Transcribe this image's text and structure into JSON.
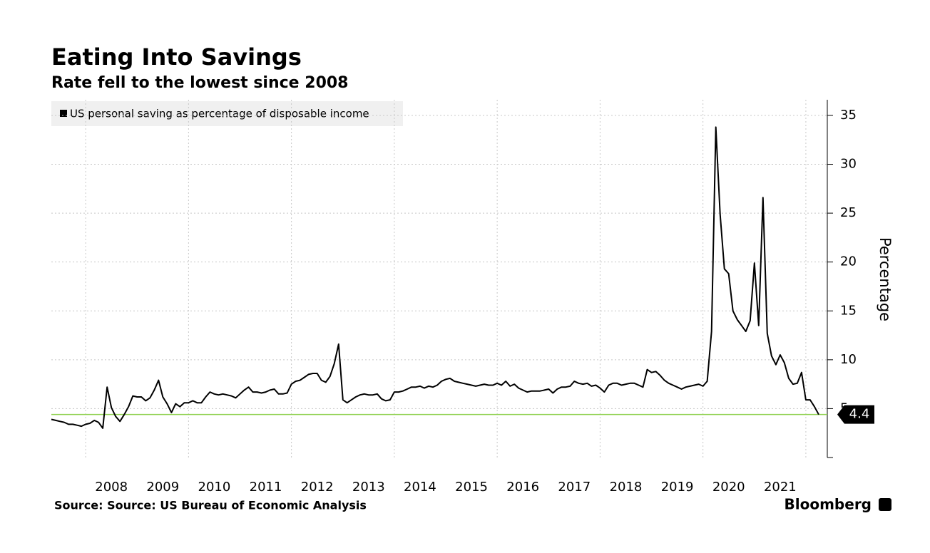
{
  "chart_data": {
    "type": "line",
    "title": "Eating Into Savings",
    "subtitle": "Rate fell to the lowest since 2008",
    "source": "Source: Source: US Bureau of Economic Analysis",
    "brand": "Bloomberg",
    "ylabel": "Percentage",
    "xlim": [
      2007.333,
      2022.417
    ],
    "ylim": [
      0,
      36.6
    ],
    "yticks": [
      5,
      10,
      15,
      20,
      25,
      30,
      35
    ],
    "xticks": [
      {
        "value": 2008.5,
        "label": "2008"
      },
      {
        "value": 2009.5,
        "label": "2009"
      },
      {
        "value": 2010.5,
        "label": "2010"
      },
      {
        "value": 2011.5,
        "label": "2011"
      },
      {
        "value": 2012.5,
        "label": "2012"
      },
      {
        "value": 2013.5,
        "label": "2013"
      },
      {
        "value": 2014.5,
        "label": "2014"
      },
      {
        "value": 2015.5,
        "label": "2015"
      },
      {
        "value": 2016.5,
        "label": "2016"
      },
      {
        "value": 2017.5,
        "label": "2017"
      },
      {
        "value": 2018.5,
        "label": "2018"
      },
      {
        "value": 2019.5,
        "label": "2019"
      },
      {
        "value": 2020.5,
        "label": "2020"
      },
      {
        "value": 2021.5,
        "label": "2021"
      }
    ],
    "xgrid": [
      2008,
      2010,
      2012,
      2014,
      2016,
      2018,
      2020,
      2022
    ],
    "grid": true,
    "reference_color": "#8fd14f",
    "x": [
      2007.333,
      2007.417,
      2007.5,
      2007.583,
      2007.667,
      2007.75,
      2007.833,
      2007.917,
      2008,
      2008.083,
      2008.167,
      2008.25,
      2008.333,
      2008.417,
      2008.5,
      2008.583,
      2008.667,
      2008.75,
      2008.833,
      2008.917,
      2009,
      2009.083,
      2009.167,
      2009.25,
      2009.333,
      2009.417,
      2009.5,
      2009.583,
      2009.667,
      2009.75,
      2009.833,
      2009.917,
      2010,
      2010.083,
      2010.167,
      2010.25,
      2010.333,
      2010.417,
      2010.5,
      2010.583,
      2010.667,
      2010.75,
      2010.833,
      2010.917,
      2011,
      2011.083,
      2011.167,
      2011.25,
      2011.333,
      2011.417,
      2011.5,
      2011.583,
      2011.667,
      2011.75,
      2011.833,
      2011.917,
      2012,
      2012.083,
      2012.167,
      2012.25,
      2012.333,
      2012.417,
      2012.5,
      2012.583,
      2012.667,
      2012.75,
      2012.833,
      2012.917,
      2013,
      2013.083,
      2013.167,
      2013.25,
      2013.333,
      2013.417,
      2013.5,
      2013.583,
      2013.667,
      2013.75,
      2013.833,
      2013.917,
      2014,
      2014.083,
      2014.167,
      2014.25,
      2014.333,
      2014.417,
      2014.5,
      2014.583,
      2014.667,
      2014.75,
      2014.833,
      2014.917,
      2015,
      2015.083,
      2015.167,
      2015.25,
      2015.333,
      2015.417,
      2015.5,
      2015.583,
      2015.667,
      2015.75,
      2015.833,
      2015.917,
      2016,
      2016.083,
      2016.167,
      2016.25,
      2016.333,
      2016.417,
      2016.5,
      2016.583,
      2016.667,
      2016.75,
      2016.833,
      2016.917,
      2017,
      2017.083,
      2017.167,
      2017.25,
      2017.333,
      2017.417,
      2017.5,
      2017.583,
      2017.667,
      2017.75,
      2017.833,
      2017.917,
      2018,
      2018.083,
      2018.167,
      2018.25,
      2018.333,
      2018.417,
      2018.5,
      2018.583,
      2018.667,
      2018.75,
      2018.833,
      2018.917,
      2019,
      2019.083,
      2019.167,
      2019.25,
      2019.333,
      2019.417,
      2019.5,
      2019.583,
      2019.667,
      2019.75,
      2019.833,
      2019.917,
      2020,
      2020.083,
      2020.167,
      2020.25,
      2020.333,
      2020.417,
      2020.5,
      2020.583,
      2020.667,
      2020.75,
      2020.833,
      2020.917,
      2021,
      2021.083,
      2021.167,
      2021.25,
      2021.333,
      2021.417,
      2021.5,
      2021.583,
      2021.667,
      2021.75,
      2021.833,
      2021.917,
      2022,
      2022.083,
      2022.167,
      2022.25
    ],
    "series": [
      {
        "name": "US personal saving as percentage of disposable income",
        "color": "#000000",
        "values": [
          3.9,
          3.8,
          3.7,
          3.6,
          3.4,
          3.4,
          3.3,
          3.2,
          3.4,
          3.5,
          3.8,
          3.6,
          3.0,
          7.2,
          5.1,
          4.2,
          3.7,
          4.4,
          5.2,
          6.3,
          6.2,
          6.2,
          5.8,
          6.1,
          6.9,
          7.9,
          6.2,
          5.5,
          4.6,
          5.5,
          5.2,
          5.6,
          5.6,
          5.8,
          5.6,
          5.6,
          6.2,
          6.7,
          6.5,
          6.4,
          6.5,
          6.4,
          6.3,
          6.1,
          6.5,
          6.9,
          7.2,
          6.7,
          6.7,
          6.6,
          6.7,
          6.9,
          7.0,
          6.5,
          6.5,
          6.6,
          7.5,
          7.8,
          7.9,
          8.2,
          8.5,
          8.6,
          8.6,
          7.9,
          7.7,
          8.3,
          9.6,
          11.6,
          5.9,
          5.6,
          5.9,
          6.2,
          6.4,
          6.5,
          6.4,
          6.4,
          6.5,
          6.0,
          5.8,
          5.9,
          6.7,
          6.7,
          6.8,
          7.0,
          7.2,
          7.2,
          7.3,
          7.1,
          7.3,
          7.2,
          7.4,
          7.8,
          8.0,
          8.1,
          7.8,
          7.7,
          7.6,
          7.5,
          7.4,
          7.3,
          7.4,
          7.5,
          7.4,
          7.4,
          7.6,
          7.4,
          7.8,
          7.3,
          7.5,
          7.1,
          6.9,
          6.7,
          6.8,
          6.8,
          6.8,
          6.9,
          7.0,
          6.6,
          7.0,
          7.2,
          7.2,
          7.3,
          7.8,
          7.6,
          7.5,
          7.6,
          7.3,
          7.4,
          7.1,
          6.7,
          7.4,
          7.6,
          7.6,
          7.4,
          7.5,
          7.6,
          7.6,
          7.4,
          7.2,
          9.0,
          8.7,
          8.8,
          8.4,
          7.9,
          7.6,
          7.4,
          7.2,
          7.0,
          7.2,
          7.3,
          7.4,
          7.5,
          7.3,
          7.8,
          12.9,
          33.8,
          24.9,
          19.3,
          18.8,
          15.0,
          14.1,
          13.5,
          12.9,
          14.0,
          19.9,
          13.5,
          26.6,
          12.7,
          10.4,
          9.5,
          10.5,
          9.7,
          8.1,
          7.5,
          7.6,
          8.7,
          5.9,
          5.9,
          5.2,
          4.4
        ]
      }
    ]
  }
}
